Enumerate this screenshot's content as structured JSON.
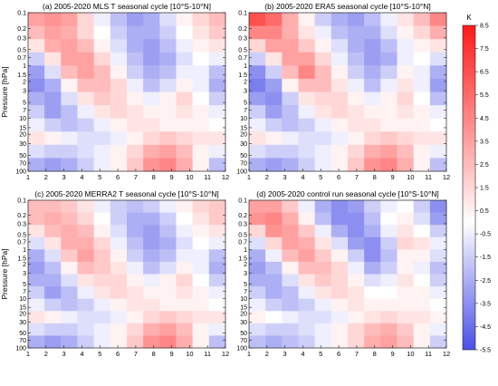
{
  "colorbar": {
    "unit": "K",
    "ticks": [
      "8.5",
      "7.5",
      "6.5",
      "5.5",
      "4.5",
      "3.5",
      "2.5",
      "1.5",
      "0.5",
      "-0.5",
      "-1.5",
      "-2.5",
      "-3.5",
      "-4.5",
      "-5.5"
    ],
    "min": -5.5,
    "max": 8.5,
    "color_min": "#4a4fe6",
    "color_mid": "#ffffff",
    "color_max": "#ff1a1a"
  },
  "chart_data": [
    {
      "type": "heatmap",
      "title": "(a) 2005-2020 MLS T seasonal cycle [10°S-10°N]",
      "xlabel": "",
      "ylabel": "Pressure [hPa]",
      "x_ticks": [
        "1",
        "2",
        "3",
        "4",
        "5",
        "6",
        "7",
        "8",
        "9",
        "10",
        "11",
        "12"
      ],
      "y_ticks": [
        "0.1",
        "0.2",
        "0.3",
        "0.5",
        "0.7",
        "1",
        "1.5",
        "2",
        "3",
        "5",
        "7",
        "10",
        "15",
        "20",
        "30",
        "50",
        "70",
        "100"
      ],
      "xlim": [
        1,
        12
      ],
      "ylim": [
        0.1,
        100
      ],
      "y_scale": "log",
      "y_reversed": true,
      "values": [
        [
          3.5,
          4.0,
          3.5,
          1.5,
          -0.5,
          -2.0,
          -3.0,
          -2.5,
          -1.0,
          0.5,
          1.5,
          2.5
        ],
        [
          2.5,
          3.5,
          3.0,
          1.5,
          0.0,
          -1.5,
          -2.5,
          -2.5,
          -1.5,
          0.0,
          1.0,
          2.0
        ],
        [
          1.0,
          3.0,
          3.5,
          2.5,
          0.5,
          -1.0,
          -2.5,
          -3.0,
          -2.0,
          -0.5,
          0.5,
          1.0
        ],
        [
          -1.5,
          1.0,
          3.5,
          3.5,
          1.5,
          -0.5,
          -2.0,
          -3.0,
          -2.5,
          -1.0,
          0.0,
          -0.5
        ],
        [
          -3.0,
          -1.0,
          2.5,
          3.5,
          2.5,
          0.5,
          -1.5,
          -2.5,
          -2.0,
          -0.5,
          -0.5,
          -2.0
        ],
        [
          -3.5,
          -2.5,
          0.5,
          2.5,
          2.5,
          1.5,
          -0.5,
          -2.0,
          -1.0,
          0.5,
          -0.5,
          -2.5
        ],
        [
          -2.5,
          -3.0,
          -1.0,
          1.0,
          2.0,
          1.5,
          0.5,
          -0.5,
          0.5,
          1.5,
          0.0,
          -1.5
        ],
        [
          -1.5,
          -3.0,
          -2.0,
          -0.5,
          1.0,
          1.5,
          1.0,
          0.5,
          0.5,
          1.0,
          0.5,
          -0.5
        ],
        [
          -0.5,
          -1.5,
          -2.0,
          -1.5,
          -0.5,
          0.5,
          1.0,
          1.0,
          0.5,
          0.5,
          0.5,
          0.0
        ],
        [
          1.0,
          0.5,
          -0.5,
          -1.0,
          -1.0,
          -0.5,
          0.5,
          1.5,
          2.0,
          1.5,
          1.0,
          1.0
        ],
        [
          -1.0,
          -1.5,
          -1.5,
          -1.0,
          -0.5,
          0.5,
          1.5,
          3.0,
          3.5,
          2.5,
          0.5,
          -0.5
        ],
        [
          -2.5,
          -3.0,
          -2.5,
          -1.5,
          -0.5,
          0.5,
          2.0,
          4.0,
          4.5,
          3.0,
          0.5,
          -2.0
        ]
      ]
    },
    {
      "type": "heatmap",
      "title": "(b) 2005-2020 ERA5 seasonal cycle [10°S-10°N]",
      "xlabel": "",
      "ylabel": "",
      "x_ticks": [
        "1",
        "2",
        "3",
        "4",
        "5",
        "6",
        "7",
        "8",
        "9",
        "10",
        "11",
        "12"
      ],
      "y_ticks": [
        "0.1",
        "0.2",
        "0.3",
        "0.5",
        "0.7",
        "1",
        "1.5",
        "2",
        "3",
        "5",
        "7",
        "10",
        "15",
        "20",
        "30",
        "50",
        "70",
        "100"
      ],
      "xlim": [
        1,
        12
      ],
      "ylim": [
        0.1,
        100
      ],
      "y_scale": "log",
      "y_reversed": true,
      "values": [
        [
          6.5,
          5.5,
          3.0,
          0.5,
          -1.5,
          -2.5,
          -3.0,
          -2.0,
          -0.5,
          1.0,
          2.5,
          4.5
        ],
        [
          4.5,
          4.5,
          3.0,
          1.0,
          -0.5,
          -2.0,
          -2.5,
          -2.5,
          -1.0,
          0.5,
          1.5,
          3.0
        ],
        [
          1.5,
          3.5,
          3.5,
          2.0,
          0.5,
          -1.0,
          -2.5,
          -3.0,
          -2.0,
          -0.5,
          0.5,
          1.0
        ],
        [
          -1.5,
          1.0,
          3.5,
          3.5,
          1.5,
          -0.5,
          -2.0,
          -3.0,
          -2.5,
          -0.5,
          0.0,
          -1.0
        ],
        [
          -3.5,
          -1.5,
          2.5,
          4.5,
          2.5,
          0.5,
          -1.5,
          -2.5,
          -1.5,
          0.5,
          -0.5,
          -2.5
        ],
        [
          -4.0,
          -3.0,
          0.5,
          2.5,
          2.5,
          1.0,
          -0.5,
          -2.0,
          -0.5,
          1.0,
          -0.5,
          -3.0
        ],
        [
          -3.0,
          -3.5,
          -1.5,
          1.0,
          1.5,
          1.5,
          0.5,
          -0.5,
          0.5,
          1.5,
          0.0,
          -2.0
        ],
        [
          -1.5,
          -3.0,
          -2.0,
          -0.5,
          1.0,
          1.5,
          1.0,
          0.5,
          0.5,
          1.0,
          0.5,
          -0.5
        ],
        [
          -0.5,
          -1.5,
          -2.0,
          -1.5,
          -0.5,
          0.5,
          1.0,
          1.0,
          0.5,
          0.5,
          0.5,
          0.0
        ],
        [
          1.0,
          0.5,
          -0.5,
          -1.0,
          -1.0,
          -0.5,
          0.5,
          1.5,
          2.0,
          1.5,
          1.0,
          1.0
        ],
        [
          -1.0,
          -1.5,
          -1.5,
          -1.0,
          -0.5,
          0.5,
          1.5,
          3.0,
          3.5,
          2.5,
          0.5,
          -0.5
        ],
        [
          -2.5,
          -3.0,
          -2.5,
          -1.5,
          -0.5,
          0.5,
          2.0,
          4.0,
          4.5,
          3.0,
          0.5,
          -2.0
        ]
      ]
    },
    {
      "type": "heatmap",
      "title": "(c) 2005-2020 MERRA2 T seasonal cycle [10°S-10°N]",
      "xlabel": "",
      "ylabel": "Pressure [hPa]",
      "x_ticks": [
        "1",
        "2",
        "3",
        "4",
        "5",
        "6",
        "7",
        "8",
        "9",
        "10",
        "11",
        "12"
      ],
      "y_ticks": [
        "0.1",
        "0.2",
        "0.3",
        "0.5",
        "0.7",
        "1",
        "1.5",
        "2",
        "3",
        "5",
        "7",
        "10",
        "15",
        "20",
        "30",
        "50",
        "70",
        "100"
      ],
      "xlim": [
        1,
        12
      ],
      "ylim": [
        0.1,
        100
      ],
      "y_scale": "log",
      "y_reversed": true,
      "values": [
        [
          2.5,
          2.5,
          2.0,
          1.0,
          -0.5,
          -1.5,
          -2.0,
          -1.5,
          -0.5,
          0.5,
          1.5,
          2.0
        ],
        [
          2.5,
          3.0,
          2.5,
          1.5,
          0.0,
          -1.5,
          -2.5,
          -2.5,
          -1.5,
          0.0,
          1.0,
          2.0
        ],
        [
          1.0,
          2.5,
          3.0,
          2.5,
          0.5,
          -1.0,
          -2.5,
          -3.0,
          -2.0,
          -0.5,
          0.5,
          1.0
        ],
        [
          -1.0,
          1.0,
          3.0,
          3.0,
          1.5,
          -0.5,
          -2.0,
          -3.0,
          -2.5,
          -1.0,
          0.0,
          -0.5
        ],
        [
          -2.5,
          -1.0,
          2.0,
          3.5,
          2.0,
          0.5,
          -1.5,
          -2.5,
          -2.0,
          -0.5,
          -0.5,
          -2.0
        ],
        [
          -3.0,
          -2.0,
          0.5,
          2.5,
          2.0,
          1.0,
          -0.5,
          -2.0,
          -1.0,
          0.5,
          -0.5,
          -2.5
        ],
        [
          -2.5,
          -2.5,
          -1.0,
          1.0,
          1.5,
          1.5,
          0.5,
          -0.5,
          0.5,
          1.5,
          0.0,
          -1.5
        ],
        [
          -1.5,
          -3.0,
          -2.0,
          -0.5,
          1.0,
          1.5,
          1.0,
          0.5,
          0.5,
          1.0,
          0.5,
          -0.5
        ],
        [
          -0.5,
          -1.5,
          -2.0,
          -1.5,
          -0.5,
          0.5,
          1.0,
          1.0,
          0.5,
          0.5,
          0.5,
          0.0
        ],
        [
          1.0,
          0.5,
          -0.5,
          -1.0,
          -1.0,
          -0.5,
          0.5,
          1.5,
          2.0,
          1.5,
          1.0,
          1.0
        ],
        [
          -1.0,
          -1.5,
          -1.5,
          -1.0,
          -0.5,
          0.5,
          1.5,
          3.0,
          3.5,
          2.5,
          0.5,
          -0.5
        ],
        [
          -2.5,
          -3.0,
          -2.5,
          -1.5,
          -0.5,
          0.5,
          2.0,
          4.0,
          4.5,
          3.0,
          0.5,
          -2.0
        ]
      ]
    },
    {
      "type": "heatmap",
      "title": "(d) 2005-2020 control run seasonal cycle [10°S-10°N]",
      "xlabel": "",
      "ylabel": "",
      "x_ticks": [
        "1",
        "2",
        "3",
        "4",
        "5",
        "6",
        "7",
        "8",
        "9",
        "10",
        "11",
        "12"
      ],
      "y_ticks": [
        "0.1",
        "0.2",
        "0.3",
        "0.5",
        "0.7",
        "1",
        "1.5",
        "2",
        "3",
        "5",
        "7",
        "10",
        "15",
        "20",
        "30",
        "50",
        "70",
        "100"
      ],
      "xlim": [
        1,
        12
      ],
      "ylim": [
        0.1,
        100
      ],
      "y_scale": "log",
      "y_reversed": true,
      "values": [
        [
          3.5,
          3.5,
          2.0,
          -0.5,
          -2.5,
          -3.5,
          -3.0,
          -1.5,
          -0.5,
          0.0,
          -1.5,
          -3.5
        ],
        [
          4.0,
          4.5,
          3.0,
          0.5,
          -2.0,
          -3.5,
          -3.5,
          -2.0,
          0.0,
          0.5,
          -1.0,
          -3.0
        ],
        [
          1.5,
          4.0,
          3.5,
          2.0,
          -0.5,
          -2.5,
          -3.5,
          -2.5,
          -0.5,
          1.0,
          0.0,
          -1.5
        ],
        [
          -1.0,
          1.5,
          3.5,
          3.0,
          1.0,
          -1.0,
          -3.0,
          -3.5,
          -1.5,
          1.5,
          1.0,
          -0.5
        ],
        [
          -2.5,
          -0.5,
          2.5,
          3.5,
          2.0,
          0.5,
          -1.5,
          -3.5,
          -2.0,
          0.5,
          0.5,
          -1.0
        ],
        [
          -3.0,
          -2.0,
          0.5,
          2.5,
          2.5,
          1.5,
          -0.5,
          -2.5,
          -1.5,
          0.5,
          -0.5,
          -2.0
        ],
        [
          -2.5,
          -2.5,
          -1.0,
          1.0,
          2.0,
          1.5,
          0.5,
          -1.0,
          -0.5,
          1.0,
          0.0,
          -1.5
        ],
        [
          -1.5,
          -2.5,
          -2.0,
          -0.5,
          1.0,
          1.5,
          1.0,
          0.0,
          0.0,
          0.5,
          0.5,
          -0.5
        ],
        [
          -0.5,
          -1.5,
          -2.0,
          -1.5,
          -0.5,
          0.5,
          1.0,
          0.5,
          0.5,
          0.5,
          0.5,
          0.0
        ],
        [
          0.5,
          0.0,
          -0.5,
          -1.0,
          -1.0,
          -0.5,
          0.5,
          1.0,
          1.5,
          1.0,
          1.0,
          0.5
        ],
        [
          -1.0,
          -1.5,
          -1.5,
          -1.0,
          -0.5,
          0.5,
          1.5,
          2.5,
          3.0,
          2.0,
          0.5,
          -0.5
        ],
        [
          -2.0,
          -2.5,
          -2.0,
          -1.5,
          -0.5,
          0.5,
          1.5,
          3.0,
          3.5,
          2.5,
          0.5,
          -1.5
        ]
      ]
    }
  ]
}
